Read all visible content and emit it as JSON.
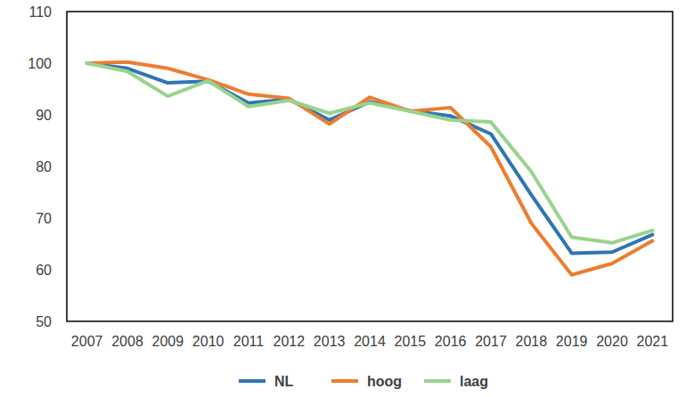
{
  "chart_data": {
    "type": "line",
    "categories": [
      "2007",
      "2008",
      "2009",
      "2010",
      "2011",
      "2012",
      "2013",
      "2014",
      "2015",
      "2016",
      "2017",
      "2018",
      "2019",
      "2020",
      "2021"
    ],
    "series": [
      {
        "name": "NL",
        "color": "#2E75B6",
        "values": [
          100,
          99,
          96.2,
          96.5,
          92.3,
          93,
          89,
          92.5,
          90.8,
          89.8,
          86.3,
          74.5,
          63.2,
          63.4,
          66.8
        ]
      },
      {
        "name": "hoog",
        "color": "#ED7D31",
        "values": [
          100,
          100.2,
          99,
          96.8,
          94,
          93.2,
          88.2,
          93.4,
          90.7,
          91.4,
          83.8,
          69,
          59,
          61.2,
          65.6
        ]
      },
      {
        "name": "laag",
        "color": "#99D38E",
        "values": [
          100,
          98.4,
          93.6,
          96.6,
          91.6,
          92.8,
          90.3,
          92.3,
          90.7,
          89,
          88.6,
          79,
          66.3,
          65.2,
          67.6
        ]
      }
    ],
    "ylim": [
      50,
      110
    ],
    "yticks": [
      50,
      60,
      70,
      80,
      90,
      100,
      110
    ],
    "grid": false,
    "legend": "bottom"
  }
}
